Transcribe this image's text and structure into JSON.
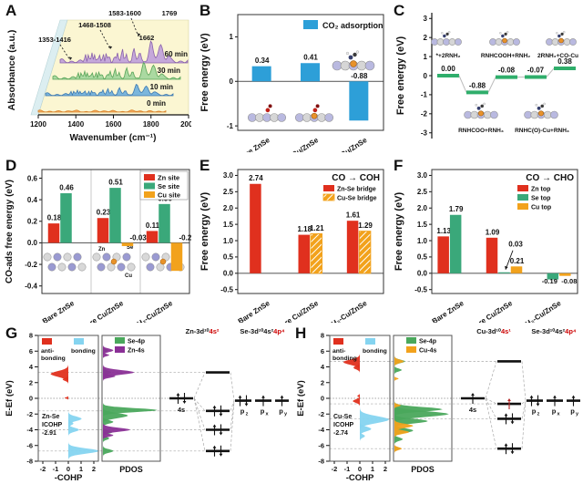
{
  "colors": {
    "red": "#e0301e",
    "green": "#3aa87a",
    "orange": "#f2a21c",
    "blue": "#2d9fd8",
    "lightblue": "#85d4f0",
    "purple": "#8a3096",
    "pdos_green": "#4aa85c",
    "step_green": "#2fae6b",
    "wall_yellow": "#fbf6d2",
    "wall_blue": "#dceef1"
  },
  "chart_data": [
    {
      "panel": "A",
      "letter": "A",
      "type": "waterfall",
      "title": "",
      "xlabel": "Wavenumber (cm⁻¹)",
      "ylabel": "Absorbance (a.u.)",
      "xticks": [
        1200,
        1400,
        1600,
        1800,
        2000
      ],
      "series": [
        {
          "name": "0 min",
          "fill": "#f5a95c",
          "stroke": "#d9862e"
        },
        {
          "name": "10 min",
          "fill": "#74b2dc",
          "stroke": "#3c78b0"
        },
        {
          "name": "30 min",
          "fill": "#a6d79e",
          "stroke": "#57a457"
        },
        {
          "name": "60 min",
          "fill": "#c2a3da",
          "stroke": "#8a62ab"
        }
      ],
      "peak_labels": [
        "1353-1416",
        "1468-1508",
        "1583-1600",
        "1662",
        "1769"
      ]
    },
    {
      "panel": "B",
      "letter": "B",
      "type": "bar",
      "ylabel": "Free energy (eV)",
      "legend": "CO₂ adsorption",
      "ylim": [
        -1.1,
        1.5
      ],
      "yticks": [
        1,
        0,
        -1
      ],
      "dec": 0,
      "categories": [
        "Bare ZnSe",
        "Bare Cu/ZnSe",
        "2RNH₂-Cu/ZnSe"
      ],
      "series": [
        {
          "name": "CO₂ adsorption",
          "color": "#2d9fd8"
        }
      ],
      "values": [
        [
          0.34
        ],
        [
          0.41
        ],
        [
          -0.88
        ]
      ],
      "negmode": "above0"
    },
    {
      "panel": "C",
      "letter": "C",
      "type": "step",
      "ylabel": "Free energy (eV)",
      "ylim": [
        -3.3,
        3.3
      ],
      "yticks": [
        3,
        2,
        1,
        0,
        -1,
        -2,
        -3
      ],
      "steps": [
        {
          "value": 0.0,
          "label": "0.00"
        },
        {
          "value": -0.88,
          "label": "-0.88"
        },
        {
          "value": -0.08,
          "label": "-0.08"
        },
        {
          "value": -0.07,
          "label": "-0.07"
        },
        {
          "value": 0.38,
          "label": "0.38"
        }
      ],
      "top_labels": [
        "*+2RNH₂",
        "RNHCOOH+RNH₂",
        "2RNH₂+CO-Cu"
      ],
      "bottom_labels": [
        "RNHCOO+RNH₃",
        "RNHC(O)-Cu+RNH₃"
      ]
    },
    {
      "panel": "D",
      "letter": "D",
      "type": "bar",
      "ylabel": "CO-ads free energy (eV)",
      "ylim": [
        -0.47,
        0.68
      ],
      "yticks": [
        0.6,
        0.4,
        0.2,
        0.0,
        -0.2,
        -0.4
      ],
      "dec": 1,
      "categories": [
        "Bare ZnSe",
        "Bare Cu/ZnSe",
        "2RNH₂-Cu/ZnSe"
      ],
      "series": [
        {
          "name": "Zn site",
          "color": "#e0301e"
        },
        {
          "name": "Se site",
          "color": "#3aa87a"
        },
        {
          "name": "Cu site",
          "color": "#f2a21c"
        }
      ],
      "values": [
        [
          0.18,
          0.46,
          null
        ],
        [
          0.23,
          0.51,
          -0.03
        ],
        [
          0.11,
          0.36,
          -0.26
        ]
      ],
      "negmode": "right",
      "separators": true,
      "legend_box": true,
      "inset_labels": [
        "Zn",
        "Se",
        "Cu"
      ]
    },
    {
      "panel": "E",
      "letter": "E",
      "type": "bar",
      "title": "CO → COH",
      "ylabel": "Free energy (eV)",
      "ylim": [
        -0.62,
        3.18
      ],
      "yticks": [
        3.0,
        2.5,
        2.0,
        1.5,
        1.0,
        0.5,
        0.0,
        -0.5
      ],
      "dec": 1,
      "categories": [
        "Bare ZnSe",
        "Bare Cu/ZnSe",
        "2RNH₂-Cu/ZnSe"
      ],
      "series": [
        {
          "name": "Zn-Se bridge",
          "color": "#e0301e"
        },
        {
          "name": "Cu-Se bridge",
          "color": "#f2a21c",
          "hatch": true
        }
      ],
      "values": [
        [
          2.74,
          null
        ],
        [
          1.18,
          1.21
        ],
        [
          1.61,
          1.29
        ]
      ],
      "negmode": "below"
    },
    {
      "panel": "F",
      "letter": "F",
      "type": "bar",
      "title": "CO → CHO",
      "ylabel": "Free energy (eV)",
      "ylim": [
        -0.62,
        3.18
      ],
      "yticks": [
        3.0,
        2.5,
        2.0,
        1.5,
        1.0,
        0.5,
        0.0,
        -0.5
      ],
      "dec": 1,
      "categories": [
        "Bare ZnSe",
        "Bare Cu/ZnSe",
        "2RNH₂-Cu/ZnSe"
      ],
      "series": [
        {
          "name": "Zn top",
          "color": "#e0301e"
        },
        {
          "name": "Se top",
          "color": "#3aa87a"
        },
        {
          "name": "Cu top",
          "color": "#f2a21c"
        }
      ],
      "values": [
        [
          1.13,
          1.79,
          null
        ],
        [
          1.09,
          0.03,
          0.21
        ],
        [
          null,
          -0.19,
          -0.08
        ]
      ],
      "negmode": "below",
      "annotate": {
        "group": 1,
        "series": 1,
        "label": "0.03"
      }
    },
    {
      "panel": "G",
      "letter": "G",
      "type": "cohp",
      "ylabel": "E-Ef (eV)",
      "yticks": [
        8,
        6,
        4,
        2,
        0,
        -2,
        -4,
        -6,
        -8
      ],
      "xticks": [
        -2,
        -1,
        0,
        1,
        2
      ],
      "xlabel": "-COHP",
      "pdos_label": "PDOS",
      "cohp_legend": [
        {
          "l1": "anti-",
          "l2": "bonding",
          "color": "#e0301e"
        },
        {
          "l1": "bonding",
          "l2": "",
          "color": "#85d4f0"
        }
      ],
      "icohp_lines": [
        "Zn-Se",
        "ICOHP",
        "-2.91"
      ],
      "pdos_legend": [
        {
          "label": "Se-4p",
          "color": "#4aa85c"
        },
        {
          "label": "Zn-4s",
          "color": "#8a3096"
        }
      ],
      "mo": {
        "left_title_black": "Zn-3d¹⁰",
        "left_title_red": "4s²",
        "right_title_black": "Se-3d¹⁰4s²",
        "right_title_red": "4p⁴",
        "left_label": "4s",
        "left_e": 0,
        "left_occ": 2,
        "mid": [
          {
            "e": 3.3,
            "occ": 0
          },
          {
            "e": -1.6,
            "occ": 2
          },
          {
            "e": -4.0,
            "occ": 2
          },
          {
            "e": -6.7,
            "occ": 2
          }
        ],
        "right": [
          {
            "sub": "z",
            "e": -0.3,
            "occ": 2
          },
          {
            "sub": "x",
            "e": -0.3,
            "occ": 1
          },
          {
            "sub": "y",
            "e": -0.3,
            "occ": 1
          }
        ]
      },
      "cohp_peaks": [
        {
          "color": "#e0301e",
          "p": [
            [
              3.1,
              0.5,
              -1.4
            ],
            [
              2.4,
              0.25,
              -0.45
            ],
            [
              0.05,
              0.12,
              -0.3
            ]
          ]
        },
        {
          "color": "#85d4f0",
          "p": [
            [
              -2.6,
              0.4,
              1.05
            ],
            [
              -3.2,
              0.3,
              0.4
            ],
            [
              -4.0,
              0.35,
              0.85
            ],
            [
              -6.7,
              0.45,
              2.4
            ]
          ]
        }
      ],
      "pdos_peaks": [
        {
          "color": "#4aa85c",
          "p": [
            [
              -1.5,
              0.35,
              2.6
            ],
            [
              -2.2,
              0.45,
              1.2
            ],
            [
              -3.0,
              0.3,
              0.5
            ],
            [
              -4.3,
              0.3,
              0.45
            ],
            [
              -5.1,
              0.25,
              0.3
            ],
            [
              -6.7,
              0.3,
              0.5
            ],
            [
              3.3,
              0.3,
              0.4
            ],
            [
              6.1,
              0.2,
              0.25
            ]
          ]
        },
        {
          "color": "#8a3096",
          "p": [
            [
              6.1,
              0.3,
              0.5
            ],
            [
              5.5,
              0.2,
              0.3
            ],
            [
              3.3,
              0.4,
              1.5
            ],
            [
              2.8,
              0.25,
              0.6
            ],
            [
              -4.0,
              0.35,
              1.3
            ],
            [
              -4.7,
              0.25,
              0.5
            ]
          ]
        }
      ]
    },
    {
      "panel": "H",
      "letter": "H",
      "type": "cohp",
      "ylabel": "E-Ef (eV)",
      "yticks": [
        8,
        6,
        4,
        2,
        0,
        -2,
        -4,
        -6,
        -8
      ],
      "xticks": [
        -2,
        -1,
        0,
        1,
        2
      ],
      "xlabel": "-COHP",
      "pdos_label": "PDOS",
      "cohp_legend": [
        {
          "l1": "anti-",
          "l2": "bonding",
          "color": "#e0301e"
        },
        {
          "l1": "bonding",
          "l2": "",
          "color": "#85d4f0"
        }
      ],
      "icohp_lines": [
        "Cu-Se",
        "ICOHP",
        "-2.74"
      ],
      "pdos_legend": [
        {
          "label": "Se-4p",
          "color": "#4aa85c"
        },
        {
          "label": "Cu-4s",
          "color": "#f2a21c"
        }
      ],
      "mo": {
        "left_title_black": "Cu-3d¹⁰",
        "left_title_red": "4s¹",
        "right_title_black": "Se-3d¹⁰4s²",
        "right_title_red": "4p⁴",
        "left_label": "4s",
        "left_e": 0,
        "left_occ": 1,
        "mid": [
          {
            "e": 4.7,
            "occ": 0
          },
          {
            "e": -0.7,
            "occ": 1,
            "red": true
          },
          {
            "e": -2.6,
            "occ": 2
          },
          {
            "e": -6.4,
            "occ": 2
          }
        ],
        "right": [
          {
            "sub": "z",
            "e": -0.3,
            "occ": 2
          },
          {
            "sub": "x",
            "e": -0.3,
            "occ": 1
          },
          {
            "sub": "y",
            "e": -0.3,
            "occ": 1
          }
        ]
      },
      "cohp_peaks": [
        {
          "color": "#e0301e",
          "p": [
            [
              4.6,
              0.45,
              -1.3
            ],
            [
              3.9,
              0.3,
              -0.5
            ],
            [
              -0.35,
              0.3,
              -0.55
            ],
            [
              0.3,
              0.15,
              -0.2
            ]
          ]
        },
        {
          "color": "#85d4f0",
          "p": [
            [
              -2.7,
              0.6,
              2.3
            ],
            [
              -3.9,
              0.4,
              0.9
            ],
            [
              -4.8,
              0.3,
              0.4
            ]
          ]
        }
      ],
      "pdos_peaks": [
        {
          "color": "#4aa85c",
          "p": [
            [
              -1.4,
              0.4,
              2.3
            ],
            [
              -2.0,
              0.5,
              2.6
            ],
            [
              -2.9,
              0.4,
              1.6
            ],
            [
              -4.1,
              0.4,
              0.9
            ],
            [
              -5.2,
              0.3,
              0.4
            ],
            [
              4.7,
              0.3,
              0.5
            ],
            [
              3.6,
              0.25,
              0.35
            ],
            [
              -6.4,
              0.2,
              0.3
            ]
          ]
        },
        {
          "color": "#f2a21c",
          "p": [
            [
              4.7,
              0.3,
              0.45
            ],
            [
              -3.5,
              0.35,
              0.9
            ],
            [
              -4.3,
              0.3,
              0.7
            ],
            [
              -6.4,
              0.25,
              0.35
            ],
            [
              -0.9,
              0.2,
              0.3
            ],
            [
              2.5,
              0.15,
              0.2
            ]
          ]
        }
      ]
    }
  ]
}
